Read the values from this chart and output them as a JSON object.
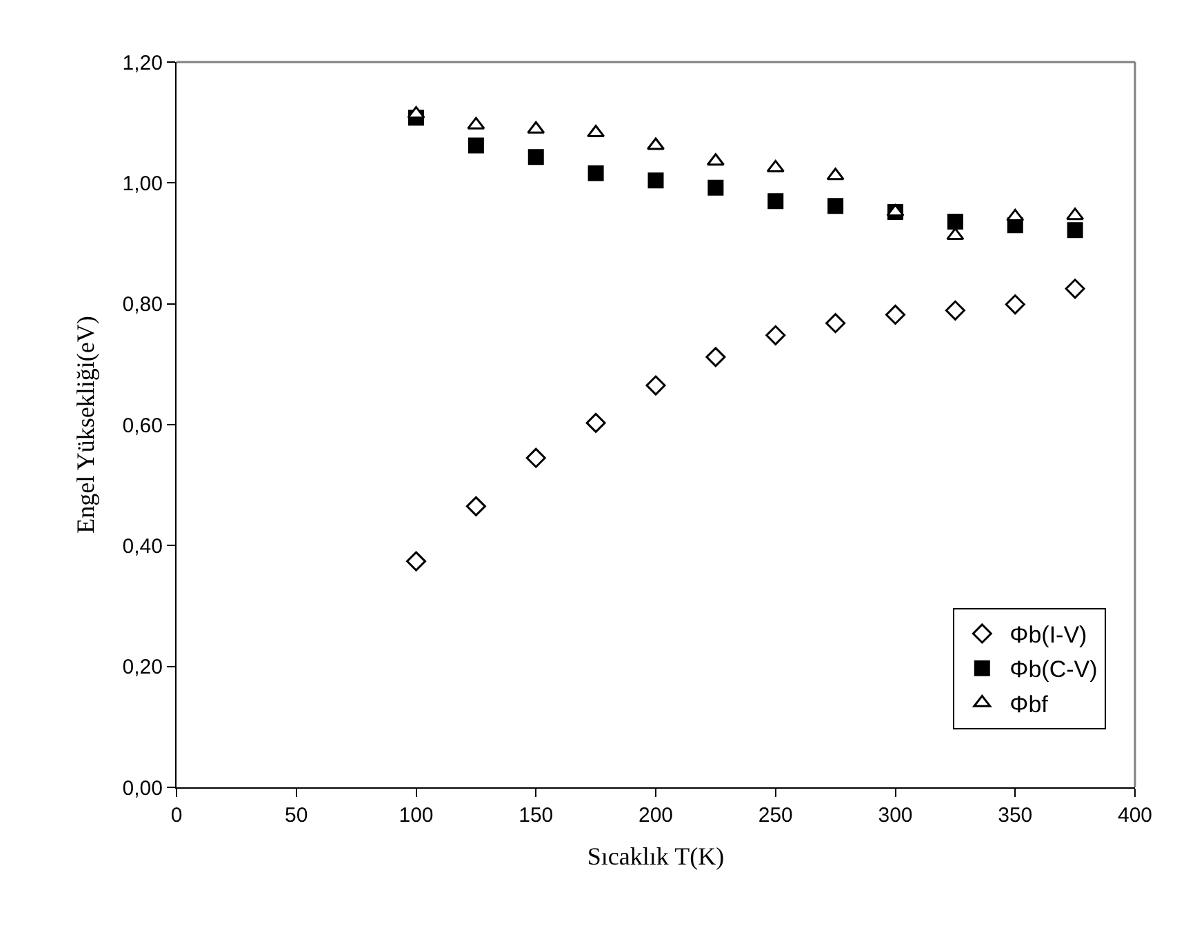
{
  "chart_data": {
    "type": "scatter",
    "xlabel": "Sıcaklık T(K)",
    "ylabel": "Engel Yüksekliği(eV)",
    "x": [
      100,
      125,
      150,
      175,
      200,
      225,
      250,
      275,
      300,
      325,
      350,
      375
    ],
    "series": [
      {
        "name": "Φb(I-V)",
        "color": "#000000",
        "marker": "diamond",
        "values": [
          0.374,
          0.465,
          0.545,
          0.603,
          0.665,
          0.712,
          0.748,
          0.768,
          0.782,
          0.789,
          0.799,
          0.825
        ]
      },
      {
        "name": "Φb(C-V)",
        "color": "#000000",
        "marker": "square",
        "values": [
          1.108,
          1.062,
          1.043,
          1.016,
          1.004,
          0.992,
          0.97,
          0.962,
          0.952,
          0.936,
          0.93,
          0.922
        ]
      },
      {
        "name": "Φbf",
        "color": "#000000",
        "marker": "triangle",
        "values": [
          1.114,
          1.096,
          1.089,
          1.083,
          1.062,
          1.036,
          1.025,
          1.012,
          0.952,
          0.913,
          0.944,
          0.946
        ]
      }
    ],
    "xlim": [
      0,
      400
    ],
    "xticks": [
      0,
      50,
      100,
      150,
      200,
      250,
      300,
      350,
      400
    ],
    "ylim": [
      0,
      1.2
    ],
    "yticks": [
      {
        "value": 0,
        "label": "0,00"
      },
      {
        "value": 0.2,
        "label": "0,20"
      },
      {
        "value": 0.4,
        "label": "0,40"
      },
      {
        "value": 0.6,
        "label": "0,60"
      },
      {
        "value": 0.8,
        "label": "0,80"
      },
      {
        "value": 1.0,
        "label": "1,00"
      },
      {
        "value": 1.2,
        "label": "1,20"
      }
    ],
    "legend": "bottom right"
  }
}
